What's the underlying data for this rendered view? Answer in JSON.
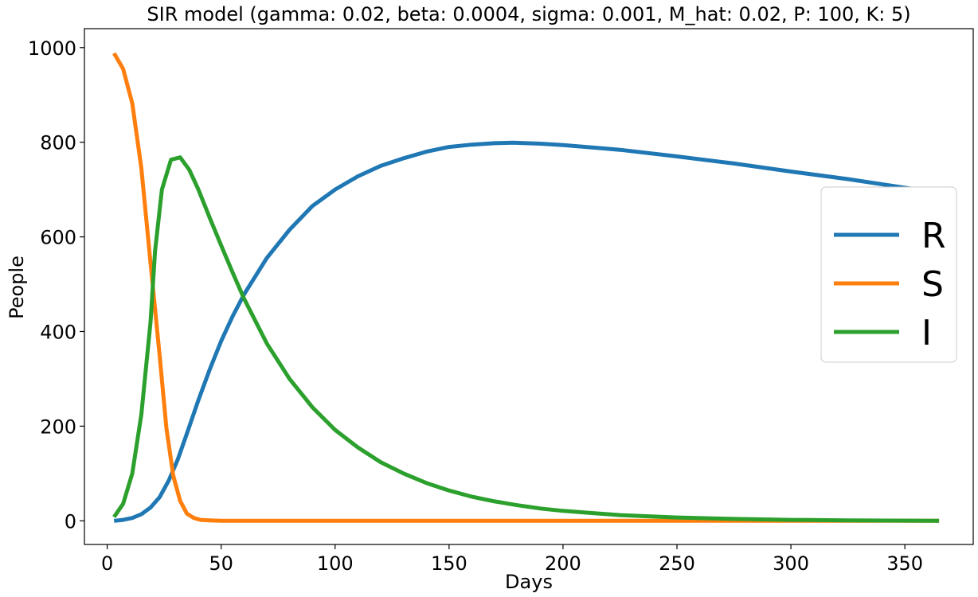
{
  "chart_data": {
    "type": "line",
    "title": "SIR model (gamma: 0.02, beta: 0.0004, sigma: 0.001, M_hat: 0.02, P: 100, K: 5)",
    "xlabel": "Days",
    "ylabel": "People",
    "xlim": [
      -10,
      380
    ],
    "ylim": [
      -50,
      1040
    ],
    "xticks": [
      0,
      50,
      100,
      150,
      200,
      250,
      300,
      350
    ],
    "yticks": [
      0,
      200,
      400,
      600,
      800,
      1000
    ],
    "grid": false,
    "legend_position": "center-right",
    "series": [
      {
        "name": "R",
        "color": "#1f77b4",
        "points": [
          [
            3,
            0
          ],
          [
            7,
            2
          ],
          [
            11,
            6
          ],
          [
            15,
            14
          ],
          [
            19,
            28
          ],
          [
            23,
            50
          ],
          [
            27,
            85
          ],
          [
            31,
            130
          ],
          [
            35,
            185
          ],
          [
            40,
            255
          ],
          [
            45,
            320
          ],
          [
            50,
            380
          ],
          [
            55,
            432
          ],
          [
            60,
            478
          ],
          [
            70,
            555
          ],
          [
            80,
            615
          ],
          [
            90,
            665
          ],
          [
            100,
            700
          ],
          [
            110,
            728
          ],
          [
            120,
            750
          ],
          [
            130,
            766
          ],
          [
            140,
            780
          ],
          [
            150,
            790
          ],
          [
            160,
            795
          ],
          [
            170,
            798
          ],
          [
            178,
            799
          ],
          [
            190,
            797
          ],
          [
            200,
            794
          ],
          [
            225,
            784
          ],
          [
            250,
            770
          ],
          [
            275,
            755
          ],
          [
            300,
            738
          ],
          [
            325,
            722
          ],
          [
            350,
            704
          ],
          [
            365,
            693
          ]
        ]
      },
      {
        "name": "S",
        "color": "#ff7f0e",
        "points": [
          [
            3,
            988
          ],
          [
            7,
            955
          ],
          [
            11,
            882
          ],
          [
            15,
            745
          ],
          [
            19,
            545
          ],
          [
            23,
            350
          ],
          [
            26,
            195
          ],
          [
            29,
            95
          ],
          [
            32,
            42
          ],
          [
            35,
            15
          ],
          [
            38,
            6
          ],
          [
            41,
            2
          ],
          [
            45,
            1
          ],
          [
            50,
            0
          ],
          [
            100,
            0
          ],
          [
            150,
            0
          ],
          [
            200,
            0
          ],
          [
            250,
            0
          ],
          [
            300,
            0
          ],
          [
            365,
            0
          ]
        ]
      },
      {
        "name": "I",
        "color": "#2ca02c",
        "points": [
          [
            3,
            8
          ],
          [
            7,
            36
          ],
          [
            11,
            100
          ],
          [
            15,
            225
          ],
          [
            19,
            420
          ],
          [
            21,
            570
          ],
          [
            24,
            700
          ],
          [
            28,
            763
          ],
          [
            32,
            768
          ],
          [
            36,
            742
          ],
          [
            40,
            700
          ],
          [
            45,
            640
          ],
          [
            50,
            582
          ],
          [
            55,
            525
          ],
          [
            60,
            470
          ],
          [
            70,
            375
          ],
          [
            80,
            300
          ],
          [
            90,
            240
          ],
          [
            100,
            192
          ],
          [
            110,
            155
          ],
          [
            120,
            124
          ],
          [
            130,
            100
          ],
          [
            140,
            80
          ],
          [
            150,
            64
          ],
          [
            160,
            51
          ],
          [
            170,
            41
          ],
          [
            180,
            33
          ],
          [
            190,
            26
          ],
          [
            200,
            21
          ],
          [
            225,
            12
          ],
          [
            250,
            7
          ],
          [
            275,
            4
          ],
          [
            300,
            2
          ],
          [
            325,
            1
          ],
          [
            365,
            0
          ]
        ]
      }
    ]
  }
}
